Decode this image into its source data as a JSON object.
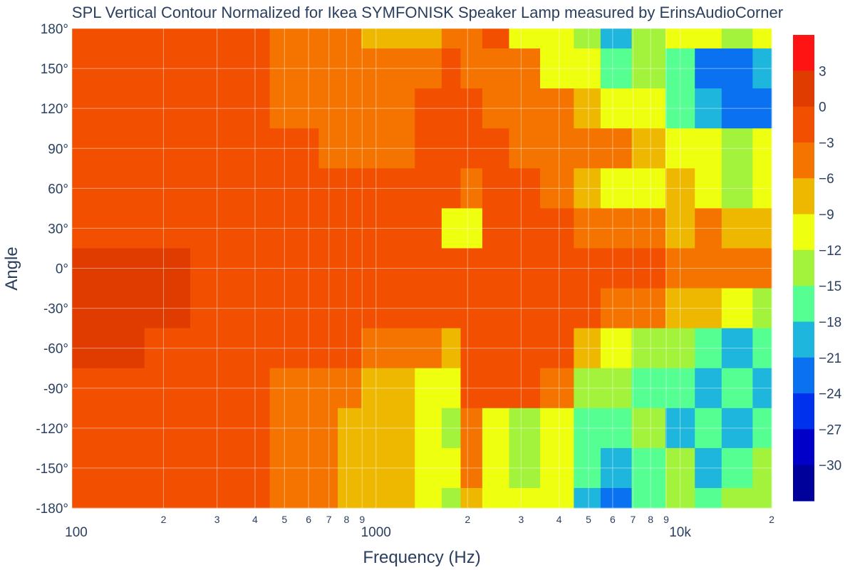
{
  "chart_data": {
    "type": "heatmap",
    "title": "SPL Vertical Contour Normalized for Ikea SYMFONISK Speaker Lamp measured by ErinsAudioCorner",
    "xlabel": "Frequency (Hz)",
    "ylabel": "Angle",
    "xscale": "log",
    "xlim": [
      100,
      20000
    ],
    "ylim": [
      -180,
      180
    ],
    "x_ticks_major": [
      "100",
      "1000",
      "10k"
    ],
    "x_tick_values_major": [
      100,
      1000,
      10000
    ],
    "x_ticks_minor": [
      "2",
      "3",
      "4",
      "5",
      "6",
      "7",
      "8",
      "9",
      "2",
      "3",
      "4",
      "5",
      "6",
      "7",
      "8",
      "9",
      "2"
    ],
    "x_tick_values_minor": [
      200,
      300,
      400,
      500,
      600,
      700,
      800,
      900,
      2000,
      3000,
      4000,
      5000,
      6000,
      7000,
      8000,
      9000,
      20000
    ],
    "y_ticks": [
      "180°",
      "150°",
      "120°",
      "90°",
      "60°",
      "30°",
      "0°",
      "-30°",
      "-60°",
      "-90°",
      "-120°",
      "-150°",
      "-180°"
    ],
    "y_tick_values": [
      180,
      150,
      120,
      90,
      60,
      30,
      0,
      -30,
      -60,
      -90,
      -120,
      -150,
      -180
    ],
    "colorbar": {
      "tick_labels": [
        "3",
        "0",
        "−3",
        "−6",
        "−9",
        "−12",
        "−15",
        "−18",
        "−21",
        "−24",
        "−27",
        "−30"
      ],
      "tick_values": [
        3,
        0,
        -3,
        -6,
        -9,
        -12,
        -15,
        -18,
        -21,
        -24,
        -27,
        -30
      ],
      "levels": [
        6,
        3,
        0,
        -3,
        -6,
        -9,
        -12,
        -15,
        -18,
        -21,
        -24,
        -27,
        -30,
        -33
      ],
      "colors": [
        "#ff1414",
        "#e03c00",
        "#f25000",
        "#f57400",
        "#eeb800",
        "#eeff10",
        "#a3f23c",
        "#55ff92",
        "#1fb6dd",
        "#0a72f0",
        "#0032ee",
        "#0000c8",
        "#00009a"
      ]
    },
    "frequencies": [
      100,
      150,
      200,
      300,
      400,
      500,
      600,
      700,
      800,
      1000,
      1200,
      1500,
      1800,
      2000,
      2500,
      3000,
      4000,
      5000,
      6000,
      8000,
      10000,
      12500,
      15000,
      20000
    ],
    "angles": [
      180,
      150,
      120,
      90,
      60,
      30,
      0,
      -30,
      -60,
      -90,
      -120,
      -150,
      -180
    ],
    "z": [
      [
        -1,
        -1,
        -1,
        -1,
        -1,
        -4,
        -4,
        -4,
        -4,
        -7,
        -7,
        -7,
        -4,
        -4,
        -1,
        -10,
        -10,
        -13,
        -20,
        -13,
        -10,
        -10,
        -13,
        -10
      ],
      [
        -1,
        -1,
        -1,
        -1,
        -1,
        -4,
        -4,
        -4,
        -4,
        -4,
        -4,
        -4,
        -1,
        -4,
        -4,
        -4,
        -10,
        -10,
        -16,
        -13,
        -16,
        -22,
        -22,
        -19
      ],
      [
        -1,
        -1,
        -1,
        -1,
        -1,
        -4,
        -4,
        -4,
        -4,
        -4,
        -4,
        -1,
        -1,
        -1,
        -4,
        -4,
        -4,
        -7,
        -10,
        -10,
        -16,
        -19,
        -22,
        -22
      ],
      [
        -1,
        -1,
        -1,
        -1,
        -1,
        -1,
        -1,
        -4,
        -4,
        -4,
        -4,
        -1,
        -1,
        -1,
        -1,
        -4,
        -4,
        -4,
        -4,
        -7,
        -10,
        -10,
        -13,
        -10
      ],
      [
        -1,
        -1,
        -1,
        -1,
        -1,
        -1,
        -1,
        -1,
        -1,
        -1,
        -1,
        -1,
        -1,
        -4,
        -1,
        -1,
        -4,
        -7,
        -10,
        -10,
        -7,
        -10,
        -13,
        -10
      ],
      [
        -1,
        -1,
        -1,
        -1,
        -1,
        -1,
        -1,
        -1,
        -1,
        -1,
        -1,
        -1,
        -10,
        -10,
        -1,
        -1,
        -1,
        -4,
        -4,
        -4,
        -7,
        -4,
        -7,
        -7
      ],
      [
        1,
        1,
        1,
        -1,
        -1,
        -1,
        -1,
        -1,
        -1,
        -1,
        -1,
        -1,
        -1,
        -1,
        -1,
        -1,
        -1,
        -1,
        -1,
        -1,
        -4,
        -4,
        -4,
        -4
      ],
      [
        1,
        1,
        1,
        -1,
        -1,
        -1,
        -1,
        -1,
        -1,
        -1,
        -1,
        -1,
        -1,
        -1,
        -1,
        -1,
        -1,
        -1,
        -4,
        -4,
        -7,
        -7,
        -10,
        -13
      ],
      [
        1,
        1,
        -1,
        -1,
        -1,
        -1,
        -1,
        -1,
        -1,
        -4,
        -4,
        -4,
        -7,
        -1,
        -1,
        -1,
        -1,
        -7,
        -10,
        -13,
        -13,
        -16,
        -19,
        -16
      ],
      [
        -1,
        -1,
        -1,
        -1,
        -1,
        -4,
        -4,
        -4,
        -4,
        -7,
        -7,
        -10,
        -10,
        -1,
        -1,
        -1,
        -4,
        -13,
        -13,
        -16,
        -16,
        -19,
        -16,
        -19
      ],
      [
        -1,
        -1,
        -1,
        -1,
        -1,
        -4,
        -4,
        -4,
        -7,
        -7,
        -7,
        -10,
        -13,
        -4,
        -10,
        -13,
        -10,
        -16,
        -16,
        -13,
        -19,
        -16,
        -19,
        -16
      ],
      [
        -1,
        -1,
        -1,
        -1,
        -1,
        -4,
        -4,
        -4,
        -7,
        -7,
        -7,
        -10,
        -10,
        -4,
        -10,
        -13,
        -10,
        -16,
        -19,
        -16,
        -13,
        -19,
        -16,
        -13
      ],
      [
        -1,
        -1,
        -1,
        -1,
        -1,
        -4,
        -4,
        -4,
        -7,
        -7,
        -7,
        -10,
        -13,
        -7,
        -10,
        -10,
        -10,
        -19,
        -22,
        -16,
        -13,
        -16,
        -13,
        -13
      ]
    ]
  }
}
